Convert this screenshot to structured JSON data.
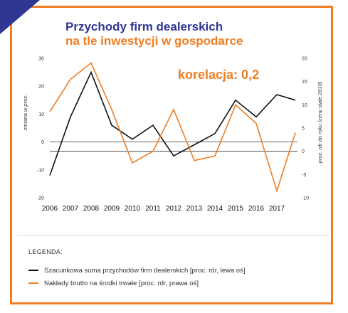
{
  "title_line1": "Przychody firm dealerskich",
  "title_line2": "na tle inwestycji w gospodarce",
  "correlation_label": "korelacja: 0,2",
  "colors": {
    "border": "#ef7d22",
    "title_blue": "#2f3694",
    "orange": "#ef7d22",
    "black": "#111111"
  },
  "legend": {
    "title": "LEGENDA:",
    "items": [
      "Szacunkowa suma przychodów firm dealerskich [proc. rdr, lewa oś]",
      "Nakłady brutto na środki trwałe [proc. rdr, prawa oś]"
    ]
  },
  "chart_data": {
    "type": "line",
    "categories": [
      "2006",
      "2007",
      "2008",
      "2009",
      "2010",
      "2011",
      "2012",
      "2013",
      "2014",
      "2015",
      "2016",
      "2017"
    ],
    "x": [
      2006,
      2007,
      2008,
      2009,
      2010,
      2011,
      2012,
      2013,
      2014,
      2015,
      2016,
      2017,
      2017.9
    ],
    "series": [
      {
        "name": "Szacunkowa suma przychodów firm dealerskich [proc. rdr, lewa oś]",
        "axis": "left",
        "color": "#111111",
        "values": [
          -12,
          9,
          25,
          6,
          1,
          6,
          -5,
          -1,
          3,
          15,
          9,
          17,
          15
        ]
      },
      {
        "name": "Nakłady brutto na środki trwałe [proc. rdr, prawa oś]",
        "axis": "right",
        "color": "#ef7d22",
        "values": [
          8.5,
          15.5,
          19,
          9,
          -2.5,
          0,
          9,
          -2,
          -1,
          10,
          6,
          -8.5,
          4
        ]
      }
    ],
    "ylabel_left": "zmiana w proc.",
    "ylabel_right": "proc. rdr do roku (ceny stałe 2010)",
    "ylim_left": [
      -20,
      30
    ],
    "ylim_right": [
      -10,
      20
    ],
    "yticks_left": [
      -20,
      -10,
      0,
      10,
      20,
      30
    ],
    "yticks_right": [
      -10,
      -5,
      0,
      5,
      10,
      15,
      20
    ],
    "grid": false,
    "legend_position": "bottom"
  }
}
